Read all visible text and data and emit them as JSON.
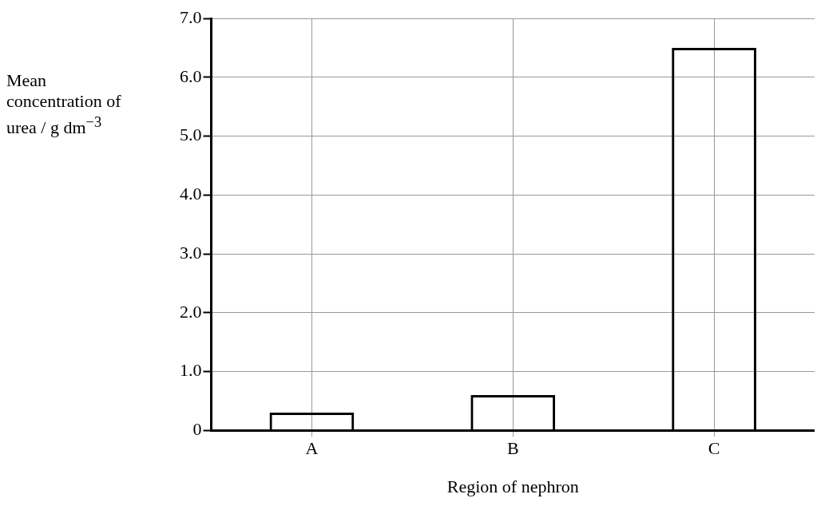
{
  "chart_data": {
    "type": "bar",
    "xlabel": "Region of nephron",
    "ylabel": "Mean concentration of urea / g dm$^{−3}$",
    "categories": [
      "A",
      "B",
      "C"
    ],
    "values": [
      0.3,
      0.6,
      6.5
    ],
    "color": "#000000",
    "ylim": [
      0,
      7
    ],
    "yticks": [
      0,
      {
        "value": 1,
        "label": "1.0"
      },
      {
        "value": 2,
        "label": "2.0"
      },
      {
        "value": 3,
        "label": "3.0"
      },
      {
        "value": 4,
        "label": "4.0"
      },
      {
        "value": 5,
        "label": "5.0"
      },
      {
        "value": 6,
        "label": "6.0"
      },
      {
        "value": 7,
        "label": "7.0"
      }
    ],
    "grid": true,
    "legend": false
  }
}
